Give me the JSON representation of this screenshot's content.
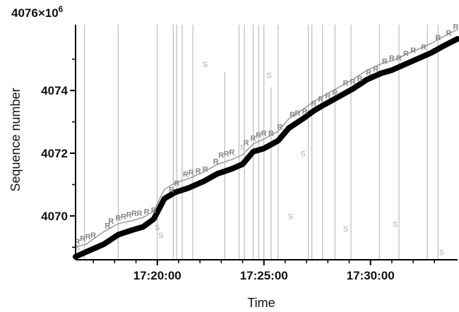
{
  "chart_data": {
    "type": "scatter",
    "title": "",
    "xlabel": "Time",
    "ylabel": "Sequence number",
    "y_scale_label": "4076×10",
    "y_scale_exponent": "6",
    "xlim": [
      "17:16:10",
      "17:34:05"
    ],
    "ylim": [
      4068.6,
      4076.1
    ],
    "xticks": [
      {
        "t": "17:20:00",
        "label": "17:20:00"
      },
      {
        "t": "17:25:00",
        "label": "17:25:00"
      },
      {
        "t": "17:30:00",
        "label": "17:30:00"
      }
    ],
    "yticks": [
      {
        "v": 4070,
        "label": "4070"
      },
      {
        "v": 4072,
        "label": "4072"
      },
      {
        "v": 4074,
        "label": "4074"
      }
    ],
    "minor_xticks": [
      "17:17:00",
      "17:18:00",
      "17:19:00",
      "17:21:00",
      "17:22:00",
      "17:23:00",
      "17:24:00",
      "17:26:00",
      "17:27:00",
      "17:28:00",
      "17:29:00",
      "17:31:00",
      "17:32:00",
      "17:33:00"
    ],
    "minor_yticks": [
      4069,
      4071,
      4073,
      4075
    ],
    "grid": false,
    "colors": {
      "sent_line": "#000000",
      "ack_line": "#999999",
      "retransmit": "#888888",
      "sack": "#aaaaaa",
      "vline": "#bbbbbb"
    },
    "sent_series": {
      "name": "",
      "points": [
        [
          "17:16:10",
          4068.7
        ],
        [
          "17:16:40",
          4068.85
        ],
        [
          "17:17:30",
          4069.1
        ],
        [
          "17:18:10",
          4069.4
        ],
        [
          "17:18:50",
          4069.55
        ],
        [
          "17:19:20",
          4069.65
        ],
        [
          "17:19:50",
          4069.9
        ],
        [
          "17:20:20",
          4070.55
        ],
        [
          "17:20:50",
          4070.75
        ],
        [
          "17:21:30",
          4070.9
        ],
        [
          "17:22:10",
          4071.1
        ],
        [
          "17:22:50",
          4071.35
        ],
        [
          "17:23:30",
          4071.5
        ],
        [
          "17:24:00",
          4071.65
        ],
        [
          "17:24:30",
          4072.05
        ],
        [
          "17:25:00",
          4072.15
        ],
        [
          "17:25:40",
          4072.4
        ],
        [
          "17:26:10",
          4072.8
        ],
        [
          "17:26:50",
          4073.1
        ],
        [
          "17:27:20",
          4073.35
        ],
        [
          "17:27:50",
          4073.55
        ],
        [
          "17:28:30",
          4073.8
        ],
        [
          "17:29:10",
          4074.05
        ],
        [
          "17:29:50",
          4074.35
        ],
        [
          "17:30:30",
          4074.55
        ],
        [
          "17:31:00",
          4074.65
        ],
        [
          "17:31:40",
          4074.85
        ],
        [
          "17:32:20",
          4075.05
        ],
        [
          "17:32:50",
          4075.2
        ],
        [
          "17:33:30",
          4075.45
        ],
        [
          "17:34:05",
          4075.65
        ]
      ]
    },
    "ack_series": {
      "name": "",
      "points": [
        [
          "17:16:10",
          4069.0
        ],
        [
          "17:16:40",
          4069.1
        ],
        [
          "17:17:30",
          4069.5
        ],
        [
          "17:18:10",
          4069.75
        ],
        [
          "17:18:50",
          4069.85
        ],
        [
          "17:19:20",
          4069.95
        ],
        [
          "17:19:50",
          4070.15
        ],
        [
          "17:20:20",
          4070.85
        ],
        [
          "17:20:50",
          4071.05
        ],
        [
          "17:21:30",
          4071.2
        ],
        [
          "17:22:10",
          4071.4
        ],
        [
          "17:22:50",
          4071.65
        ],
        [
          "17:23:30",
          4071.8
        ],
        [
          "17:24:00",
          4071.95
        ],
        [
          "17:24:30",
          4072.3
        ],
        [
          "17:25:00",
          4072.45
        ],
        [
          "17:25:40",
          4072.7
        ],
        [
          "17:26:10",
          4073.1
        ],
        [
          "17:26:50",
          4073.4
        ],
        [
          "17:27:20",
          4073.65
        ],
        [
          "17:27:50",
          4073.85
        ],
        [
          "17:28:30",
          4074.1
        ],
        [
          "17:29:10",
          4074.35
        ],
        [
          "17:29:50",
          4074.65
        ],
        [
          "17:30:30",
          4074.85
        ],
        [
          "17:31:00",
          4074.95
        ],
        [
          "17:31:40",
          4075.15
        ],
        [
          "17:32:20",
          4075.35
        ],
        [
          "17:32:50",
          4075.5
        ],
        [
          "17:33:30",
          4075.75
        ],
        [
          "17:34:05",
          4075.95
        ]
      ]
    },
    "retransmit_label": "R",
    "retransmits": [
      [
        "17:16:15",
        4069.1
      ],
      [
        "17:16:30",
        4069.2
      ],
      [
        "17:16:45",
        4069.25
      ],
      [
        "17:17:00",
        4069.3
      ],
      [
        "17:17:40",
        4069.6
      ],
      [
        "17:17:50",
        4069.75
      ],
      [
        "17:18:10",
        4069.85
      ],
      [
        "17:18:25",
        4069.9
      ],
      [
        "17:18:40",
        4069.95
      ],
      [
        "17:18:55",
        4070.0
      ],
      [
        "17:19:10",
        4070.0
      ],
      [
        "17:19:30",
        4070.05
      ],
      [
        "17:19:50",
        4070.1
      ],
      [
        "17:20:40",
        4070.75
      ],
      [
        "17:20:55",
        4070.95
      ],
      [
        "17:21:20",
        4071.25
      ],
      [
        "17:21:35",
        4071.3
      ],
      [
        "17:21:55",
        4071.35
      ],
      [
        "17:22:15",
        4071.4
      ],
      [
        "17:22:45",
        4071.65
      ],
      [
        "17:23:00",
        4071.85
      ],
      [
        "17:23:15",
        4071.9
      ],
      [
        "17:23:30",
        4071.95
      ],
      [
        "17:24:10",
        4072.25
      ],
      [
        "17:24:30",
        4072.4
      ],
      [
        "17:24:45",
        4072.5
      ],
      [
        "17:25:00",
        4072.55
      ],
      [
        "17:25:20",
        4072.55
      ],
      [
        "17:25:45",
        4072.75
      ],
      [
        "17:26:20",
        4073.15
      ],
      [
        "17:26:35",
        4073.2
      ],
      [
        "17:26:55",
        4073.25
      ],
      [
        "17:27:20",
        4073.5
      ],
      [
        "17:27:40",
        4073.65
      ],
      [
        "17:28:00",
        4073.75
      ],
      [
        "17:28:20",
        4073.85
      ],
      [
        "17:28:50",
        4074.15
      ],
      [
        "17:29:10",
        4074.2
      ],
      [
        "17:29:30",
        4074.3
      ],
      [
        "17:29:55",
        4074.5
      ],
      [
        "17:30:15",
        4074.6
      ],
      [
        "17:30:40",
        4074.85
      ],
      [
        "17:31:00",
        4074.95
      ],
      [
        "17:31:20",
        4074.95
      ],
      [
        "17:31:40",
        4075.1
      ],
      [
        "17:32:00",
        4075.2
      ],
      [
        "17:32:30",
        4075.3
      ],
      [
        "17:33:10",
        4075.6
      ],
      [
        "17:33:40",
        4075.75
      ],
      [
        "17:34:00",
        4075.95
      ]
    ],
    "sack_label": "S",
    "sacks": [
      [
        "17:16:15",
        4068.9
      ],
      [
        "17:20:00",
        4069.55
      ],
      [
        "17:20:10",
        4069.3
      ],
      [
        "17:22:15",
        4074.75
      ],
      [
        "17:24:00",
        4072.1
      ],
      [
        "17:25:15",
        4074.4
      ],
      [
        "17:26:15",
        4069.9
      ],
      [
        "17:26:50",
        4071.9
      ],
      [
        "17:28:50",
        4069.5
      ],
      [
        "17:31:10",
        4069.65
      ],
      [
        "17:33:20",
        4068.75
      ]
    ],
    "vlines": [
      "17:16:35",
      "17:18:10",
      "17:20:00",
      "17:20:45",
      "17:20:55",
      "17:21:10",
      "17:21:40",
      "17:23:10",
      "17:23:50",
      "17:24:05",
      "17:24:30",
      "17:24:45",
      "17:25:00",
      "17:25:20",
      "17:25:40",
      "17:27:05",
      "17:27:15",
      "17:27:45",
      "17:28:20",
      "17:29:05",
      "17:30:25",
      "17:31:20",
      "17:32:40",
      "17:33:10"
    ],
    "vline_tops": [
      4076.1,
      4076.1,
      4076.1,
      4076.1,
      4076.1,
      4076.1,
      4076.1,
      4074.6,
      4076.1,
      4076.1,
      4076.1,
      4076.1,
      4076.1,
      4074.1,
      4076.1,
      4076.1,
      4076.1,
      4076.1,
      4076.1,
      4076.1,
      4076.1,
      4076.1,
      4076.1,
      4076.1
    ]
  }
}
